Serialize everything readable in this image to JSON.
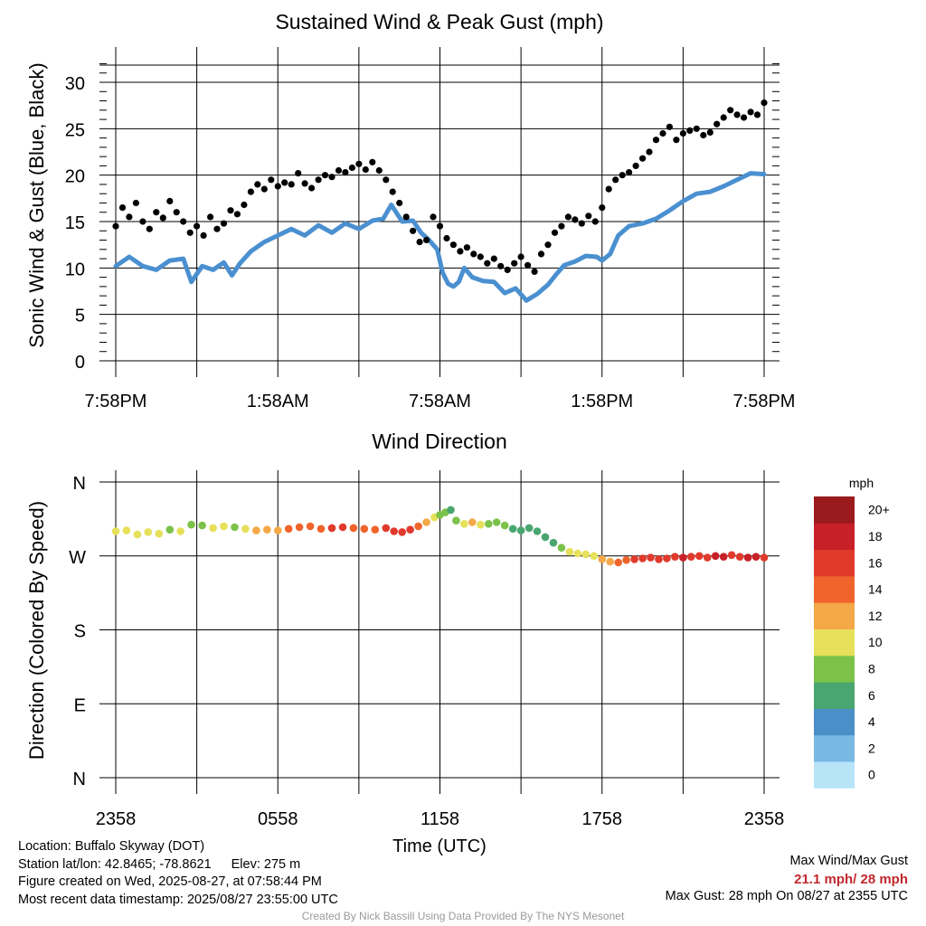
{
  "chart_data": [
    {
      "type": "scatter",
      "title": "Sustained Wind & Peak Gust (mph)",
      "ylabel": "Sonic Wind & Gust (Blue, Black)",
      "xlabel": "",
      "ylim": [
        0,
        32
      ],
      "yticks": [
        "0",
        "5",
        "10",
        "15",
        "20",
        "25",
        "30"
      ],
      "x_tick_labels": [
        "7:58PM",
        "1:58AM",
        "7:58AM",
        "1:58PM",
        "7:58PM"
      ],
      "x_hours": [
        0,
        6,
        12,
        18,
        24
      ],
      "grid": true,
      "series": [
        {
          "color": "#4a90d0",
          "style": "line",
          "points": [
            [
              0,
              10.2
            ],
            [
              0.5,
              11.2
            ],
            [
              1,
              10.2
            ],
            [
              1.5,
              9.8
            ],
            [
              2,
              10.8
            ],
            [
              2.5,
              11
            ],
            [
              2.8,
              8.5
            ],
            [
              3.2,
              10.2
            ],
            [
              3.6,
              9.8
            ],
            [
              4,
              10.6
            ],
            [
              4.3,
              9.2
            ],
            [
              4.6,
              10.5
            ],
            [
              5,
              11.8
            ],
            [
              5.5,
              12.8
            ],
            [
              6,
              13.5
            ],
            [
              6.5,
              14.2
            ],
            [
              7,
              13.5
            ],
            [
              7.5,
              14.6
            ],
            [
              8,
              13.8
            ],
            [
              8.5,
              14.8
            ],
            [
              9,
              14.2
            ],
            [
              9.5,
              15.1
            ],
            [
              9.9,
              15.3
            ],
            [
              10.2,
              16.8
            ],
            [
              10.6,
              15
            ],
            [
              11,
              15.1
            ],
            [
              11.3,
              13.8
            ],
            [
              11.6,
              13
            ],
            [
              11.9,
              12
            ],
            [
              12.1,
              9.5
            ],
            [
              12.3,
              8.3
            ],
            [
              12.5,
              8
            ],
            [
              12.7,
              8.5
            ],
            [
              12.9,
              10
            ],
            [
              13.2,
              9
            ],
            [
              13.6,
              8.6
            ],
            [
              14,
              8.5
            ],
            [
              14.4,
              7.3
            ],
            [
              14.8,
              7.8
            ],
            [
              15.2,
              6.5
            ],
            [
              15.6,
              7.2
            ],
            [
              16,
              8.2
            ],
            [
              16.3,
              9.3
            ],
            [
              16.6,
              10.3
            ],
            [
              17,
              10.7
            ],
            [
              17.4,
              11.3
            ],
            [
              17.8,
              11.2
            ],
            [
              18,
              10.8
            ],
            [
              18.3,
              11.5
            ],
            [
              18.6,
              13.5
            ],
            [
              19,
              14.5
            ],
            [
              19.5,
              14.8
            ],
            [
              20,
              15.3
            ],
            [
              20.5,
              16.2
            ],
            [
              21,
              17.2
            ],
            [
              21.5,
              18
            ],
            [
              22,
              18.2
            ],
            [
              22.5,
              18.8
            ],
            [
              23,
              19.5
            ],
            [
              23.5,
              20.2
            ],
            [
              24,
              20.1
            ]
          ]
        },
        {
          "color": "#000000",
          "style": "dots",
          "points": [
            [
              0,
              14.5
            ],
            [
              0.25,
              16.5
            ],
            [
              0.5,
              15.5
            ],
            [
              0.75,
              17
            ],
            [
              1,
              15
            ],
            [
              1.25,
              14.2
            ],
            [
              1.5,
              16
            ],
            [
              1.75,
              15.4
            ],
            [
              2,
              17.2
            ],
            [
              2.25,
              16
            ],
            [
              2.5,
              15
            ],
            [
              2.75,
              13.8
            ],
            [
              3,
              14.5
            ],
            [
              3.25,
              13.5
            ],
            [
              3.5,
              15.5
            ],
            [
              3.75,
              14.2
            ],
            [
              4,
              14.8
            ],
            [
              4.25,
              16.2
            ],
            [
              4.5,
              15.8
            ],
            [
              4.75,
              16.8
            ],
            [
              5,
              18.2
            ],
            [
              5.25,
              19
            ],
            [
              5.5,
              18.5
            ],
            [
              5.75,
              19.5
            ],
            [
              6,
              18.8
            ],
            [
              6.25,
              19.2
            ],
            [
              6.5,
              19
            ],
            [
              6.75,
              20.2
            ],
            [
              7,
              19.1
            ],
            [
              7.25,
              18.6
            ],
            [
              7.5,
              19.5
            ],
            [
              7.75,
              20
            ],
            [
              8,
              19.8
            ],
            [
              8.25,
              20.5
            ],
            [
              8.5,
              20.3
            ],
            [
              8.75,
              20.8
            ],
            [
              9,
              21.2
            ],
            [
              9.25,
              20.6
            ],
            [
              9.5,
              21.4
            ],
            [
              9.75,
              20.5
            ],
            [
              10,
              19.5
            ],
            [
              10.25,
              18.2
            ],
            [
              10.5,
              17
            ],
            [
              10.75,
              15.5
            ],
            [
              11,
              14
            ],
            [
              11.25,
              12.8
            ],
            [
              11.5,
              13
            ],
            [
              11.75,
              15.5
            ],
            [
              12,
              14.5
            ],
            [
              12.25,
              13.2
            ],
            [
              12.5,
              12.5
            ],
            [
              12.75,
              11.8
            ],
            [
              13,
              12.2
            ],
            [
              13.25,
              11.5
            ],
            [
              13.5,
              11.2
            ],
            [
              13.75,
              10.5
            ],
            [
              14,
              11
            ],
            [
              14.25,
              10.2
            ],
            [
              14.5,
              9.8
            ],
            [
              14.75,
              10.5
            ],
            [
              15,
              11.2
            ],
            [
              15.25,
              10.3
            ],
            [
              15.5,
              9.6
            ],
            [
              15.75,
              11.5
            ],
            [
              16,
              12.5
            ],
            [
              16.25,
              13.8
            ],
            [
              16.5,
              14.5
            ],
            [
              16.75,
              15.5
            ],
            [
              17,
              15.2
            ],
            [
              17.25,
              14.8
            ],
            [
              17.5,
              15.6
            ],
            [
              17.75,
              15
            ],
            [
              18,
              16.5
            ],
            [
              18.25,
              18.5
            ],
            [
              18.5,
              19.5
            ],
            [
              18.75,
              20
            ],
            [
              19,
              20.3
            ],
            [
              19.25,
              21
            ],
            [
              19.5,
              21.8
            ],
            [
              19.75,
              22.5
            ],
            [
              20,
              23.8
            ],
            [
              20.25,
              24.5
            ],
            [
              20.5,
              25.2
            ],
            [
              20.75,
              23.8
            ],
            [
              21,
              24.5
            ],
            [
              21.25,
              24.8
            ],
            [
              21.5,
              25
            ],
            [
              21.75,
              24.3
            ],
            [
              22,
              24.6
            ],
            [
              22.25,
              25.5
            ],
            [
              22.5,
              26.2
            ],
            [
              22.75,
              27
            ],
            [
              23,
              26.5
            ],
            [
              23.25,
              26.2
            ],
            [
              23.5,
              26.8
            ],
            [
              23.75,
              26.5
            ],
            [
              24,
              27.8
            ]
          ]
        }
      ]
    },
    {
      "type": "scatter",
      "title": "Wind Direction",
      "ylabel": "Direction (Colored By Speed)",
      "xlabel": "Time (UTC)",
      "ylim": [
        0,
        360
      ],
      "yticks": [
        "N",
        "E",
        "S",
        "W",
        "N"
      ],
      "x_tick_labels": [
        "2358",
        "0558",
        "1158",
        "1758",
        "2358"
      ],
      "x_hours": [
        0,
        6,
        12,
        18,
        24
      ],
      "grid": true,
      "colorbar": {
        "unit": "mph",
        "labels": [
          "0",
          "2",
          "4",
          "6",
          "8",
          "10",
          "12",
          "14",
          "16",
          "18",
          "20+"
        ],
        "colors": [
          "#b8e4f8",
          "#7ab8e4",
          "#4a8fc8",
          "#4aa670",
          "#7cc24a",
          "#e6e05a",
          "#f4a848",
          "#f0642c",
          "#e03a2c",
          "#c82028",
          "#9a1a1e"
        ]
      },
      "points": [
        [
          0,
          300,
          11
        ],
        [
          0.4,
          301,
          11
        ],
        [
          0.8,
          296,
          10
        ],
        [
          1.2,
          299,
          11
        ],
        [
          1.6,
          297,
          10
        ],
        [
          2,
          302,
          9
        ],
        [
          2.4,
          300,
          10
        ],
        [
          2.8,
          308,
          9
        ],
        [
          3.2,
          307,
          9
        ],
        [
          3.6,
          304,
          10
        ],
        [
          4,
          306,
          10
        ],
        [
          4.4,
          305,
          8
        ],
        [
          4.8,
          303,
          10
        ],
        [
          5.2,
          301,
          12
        ],
        [
          5.6,
          302,
          12
        ],
        [
          6,
          301,
          13
        ],
        [
          6.4,
          303,
          14
        ],
        [
          6.8,
          305,
          14
        ],
        [
          7.2,
          306,
          14
        ],
        [
          7.6,
          303,
          15
        ],
        [
          8,
          304,
          16
        ],
        [
          8.4,
          305,
          16
        ],
        [
          8.8,
          304,
          15
        ],
        [
          9.2,
          303,
          15
        ],
        [
          9.6,
          302,
          15
        ],
        [
          10,
          304,
          16
        ],
        [
          10.3,
          300,
          17
        ],
        [
          10.6,
          299,
          17
        ],
        [
          10.9,
          302,
          16
        ],
        [
          11.2,
          306,
          14
        ],
        [
          11.5,
          311,
          12
        ],
        [
          11.8,
          317,
          10
        ],
        [
          12,
          320,
          9
        ],
        [
          12.2,
          323,
          8
        ],
        [
          12.4,
          326,
          7
        ],
        [
          12.6,
          313,
          8
        ],
        [
          12.9,
          309,
          11
        ],
        [
          13.2,
          311,
          13
        ],
        [
          13.5,
          308,
          11
        ],
        [
          13.8,
          309,
          9
        ],
        [
          14.1,
          311,
          8
        ],
        [
          14.4,
          307,
          8
        ],
        [
          14.7,
          303,
          6
        ],
        [
          15,
          301,
          7
        ],
        [
          15.3,
          304,
          6
        ],
        [
          15.6,
          300,
          6
        ],
        [
          15.9,
          293,
          6
        ],
        [
          16.2,
          286,
          7
        ],
        [
          16.5,
          280,
          8
        ],
        [
          16.8,
          275,
          10
        ],
        [
          17.1,
          273,
          10
        ],
        [
          17.4,
          272,
          10
        ],
        [
          17.7,
          270,
          11
        ],
        [
          18,
          266,
          12
        ],
        [
          18.3,
          263,
          13
        ],
        [
          18.6,
          262,
          14
        ],
        [
          18.9,
          265,
          15
        ],
        [
          19.2,
          266,
          16
        ],
        [
          19.5,
          267,
          16
        ],
        [
          19.8,
          268,
          17
        ],
        [
          20.1,
          266,
          17
        ],
        [
          20.4,
          267,
          17
        ],
        [
          20.7,
          269,
          17
        ],
        [
          21,
          268,
          18
        ],
        [
          21.3,
          269,
          17
        ],
        [
          21.6,
          270,
          17
        ],
        [
          21.9,
          268,
          17
        ],
        [
          22.2,
          270,
          18
        ],
        [
          22.5,
          269,
          18
        ],
        [
          22.8,
          271,
          17
        ],
        [
          23.1,
          269,
          17
        ],
        [
          23.4,
          268,
          18
        ],
        [
          23.7,
          269,
          18
        ],
        [
          24,
          268,
          17
        ]
      ]
    }
  ],
  "footer": {
    "location": "Location: Buffalo Skyway (DOT)",
    "station": "Station lat/lon: 42.8465; -78.8621",
    "elev": "Elev: 275 m",
    "created": "Figure created on Wed, 2025-08-27, at 07:58:44 PM",
    "recent": "Most recent data timestamp: 2025/08/27 23:55:00 UTC",
    "max_header": "Max Wind/Max Gust",
    "max_values": "21.1 mph/ 28 mph",
    "max_gust_line": "Max Gust: 28 mph On 08/27 at 2355 UTC",
    "credit": "Created By Nick Bassill Using Data Provided By The NYS Mesonet"
  }
}
